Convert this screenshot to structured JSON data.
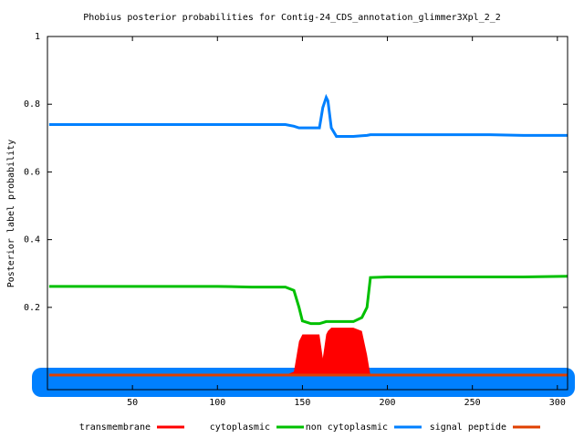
{
  "chart_data": {
    "type": "line",
    "title": "Phobius posterior probabilities for Contig-24_CDS_annotation_glimmer3Xpl_2_2",
    "y_label": "Posterior label probability",
    "x": [
      1,
      20,
      40,
      60,
      80,
      100,
      120,
      140,
      145,
      148,
      150,
      155,
      160,
      162,
      164,
      165,
      167,
      170,
      175,
      180,
      185,
      188,
      190,
      200,
      220,
      240,
      260,
      280,
      306
    ],
    "series": [
      {
        "name": "transmembrane",
        "color": "#ff0000",
        "fill": true,
        "values": [
          0,
          0,
          0,
          0,
          0,
          0,
          0.003,
          0,
          0.01,
          0.1,
          0.12,
          0.12,
          0.12,
          0.05,
          0.12,
          0.13,
          0.14,
          0.14,
          0.14,
          0.14,
          0.13,
          0.06,
          0,
          0,
          0,
          0,
          0,
          0,
          0
        ]
      },
      {
        "name": "cytoplasmic",
        "color": "#00c000",
        "values": [
          0.262,
          0.262,
          0.262,
          0.262,
          0.262,
          0.262,
          0.26,
          0.26,
          0.25,
          0.2,
          0.16,
          0.152,
          0.152,
          0.155,
          0.158,
          0.158,
          0.158,
          0.158,
          0.158,
          0.158,
          0.17,
          0.2,
          0.288,
          0.29,
          0.29,
          0.29,
          0.29,
          0.29,
          0.292
        ]
      },
      {
        "name": "non cytoplasmic",
        "color": "#0080ff",
        "values": [
          0.74,
          0.74,
          0.74,
          0.74,
          0.74,
          0.74,
          0.74,
          0.74,
          0.735,
          0.73,
          0.73,
          0.73,
          0.73,
          0.79,
          0.82,
          0.81,
          0.73,
          0.705,
          0.705,
          0.705,
          0.707,
          0.708,
          0.71,
          0.71,
          0.71,
          0.71,
          0.71,
          0.708,
          0.708
        ]
      },
      {
        "name": "signal peptide",
        "color": "#e04000",
        "values": [
          0,
          0,
          0,
          0,
          0,
          0,
          0,
          0,
          0,
          0,
          0,
          0,
          0,
          0,
          0,
          0,
          0,
          0,
          0,
          0,
          0,
          0,
          0,
          0,
          0,
          0,
          0,
          0,
          0
        ]
      }
    ],
    "xlim": [
      0,
      306
    ],
    "xticks": [
      50,
      100,
      150,
      200,
      250,
      300
    ],
    "ylim": [
      -0.043,
      1
    ],
    "yticks": [
      0.2,
      0.4,
      0.6,
      0.8,
      1
    ]
  }
}
